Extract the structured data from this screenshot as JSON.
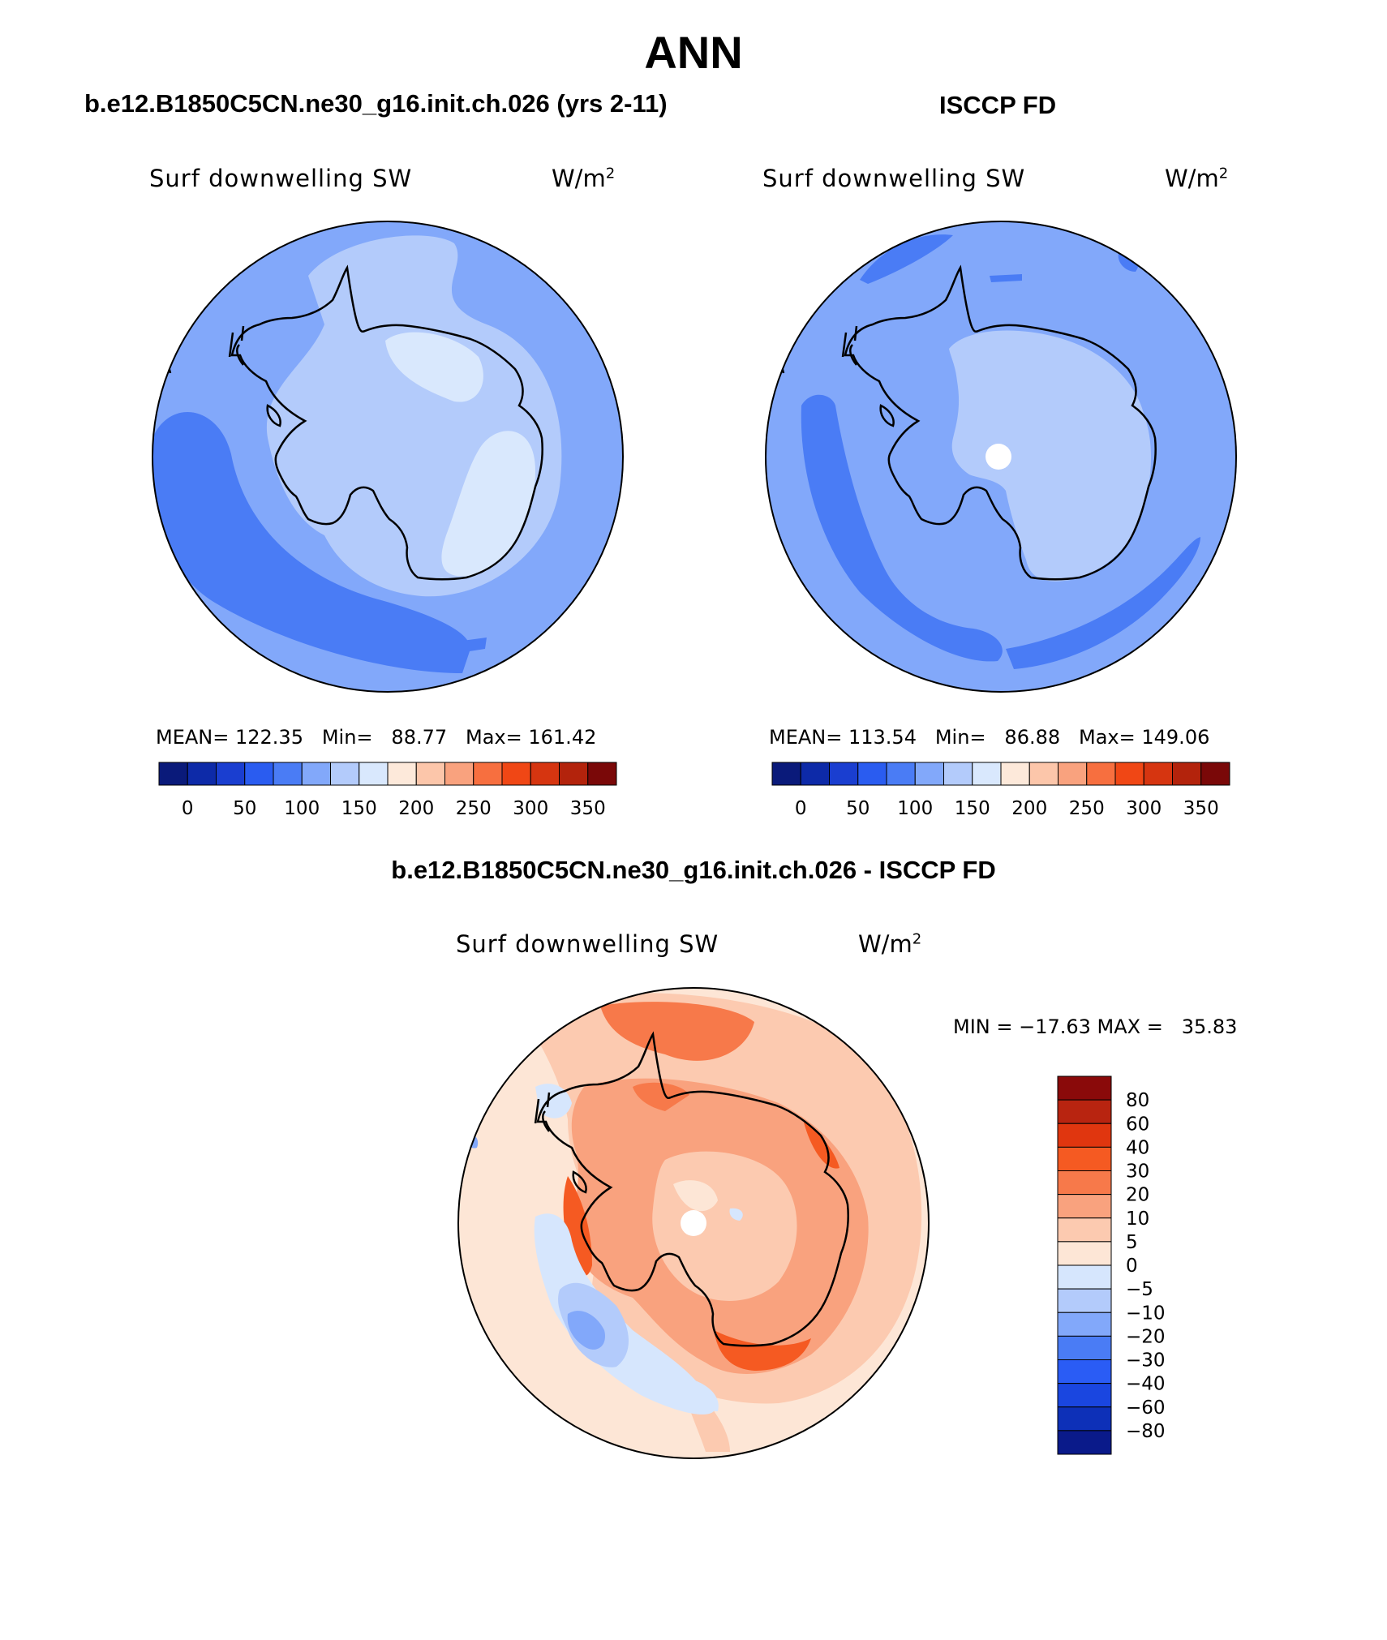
{
  "page": {
    "title": "ANN",
    "left_panel_title": "b.e12.B1850C5CN.ne30_g16.init.ch.026 (yrs 2-11)",
    "right_panel_title": "ISCCP FD",
    "diff_panel_title": "b.e12.B1850C5CN.ne30_g16.init.ch.026 - ISCCP FD"
  },
  "colors": {
    "abs_palette": [
      "#0a1a7a",
      "#0d2aa8",
      "#1a3ed0",
      "#2a5cf0",
      "#4a7cf5",
      "#82a8fa",
      "#b3cbfb",
      "#d9e8fd",
      "#fde9da",
      "#fcc6aa",
      "#f9a27e",
      "#f76f3f",
      "#f04715",
      "#d63510",
      "#b3230c",
      "#7a0808"
    ],
    "diff_palette": [
      "#0a1a8a",
      "#0d30b8",
      "#1a46e0",
      "#2a5cf5",
      "#4a7cf5",
      "#82a8fa",
      "#b3cbfb",
      "#d6e6fd",
      "#fde6d6",
      "#fccab0",
      "#f9a27e",
      "#f7794a",
      "#f55a22",
      "#e0360f",
      "#b82410",
      "#8a0a0a"
    ],
    "land_outline": "#000000"
  },
  "chart_data": [
    {
      "type": "heatmap",
      "projection": "south polar stereographic",
      "title": "b.e12.B1850C5CN.ne30_g16.init.ch.026 (yrs 2-11)",
      "field_label": "Surf downwelling SW",
      "units_label": "W/m",
      "units_exponent": "2",
      "stats_text": "MEAN= 122.35   Min=   88.77   Max= 161.42",
      "mean": 122.35,
      "min": 88.77,
      "max": 161.42,
      "colorbar_ticks": [
        "0",
        "50",
        "100",
        "150",
        "200",
        "250",
        "300",
        "350"
      ],
      "colorbar_levels": [
        0,
        25,
        50,
        75,
        100,
        125,
        150,
        175,
        200,
        225,
        250,
        275,
        300,
        325,
        350
      ]
    },
    {
      "type": "heatmap",
      "projection": "south polar stereographic",
      "title": "ISCCP FD",
      "field_label": "Surf downwelling SW",
      "units_label": "W/m",
      "units_exponent": "2",
      "stats_text": "MEAN= 113.54   Min=   86.88   Max= 149.06",
      "mean": 113.54,
      "min": 86.88,
      "max": 149.06,
      "colorbar_ticks": [
        "0",
        "50",
        "100",
        "150",
        "200",
        "250",
        "300",
        "350"
      ],
      "colorbar_levels": [
        0,
        25,
        50,
        75,
        100,
        125,
        150,
        175,
        200,
        225,
        250,
        275,
        300,
        325,
        350
      ]
    },
    {
      "type": "heatmap",
      "projection": "south polar stereographic",
      "title": "b.e12.B1850C5CN.ne30_g16.init.ch.026 - ISCCP FD",
      "field_label": "Surf downwelling SW",
      "units_label": "W/m",
      "units_exponent": "2",
      "stats_text": "MIN = −17.63 MAX =   35.83",
      "min": -17.63,
      "max": 35.83,
      "colorbar_ticks": [
        "80",
        "60",
        "40",
        "30",
        "20",
        "10",
        "5",
        "0",
        "−5",
        "−10",
        "−20",
        "−30",
        "−40",
        "−60",
        "−80"
      ],
      "colorbar_levels": [
        80,
        60,
        40,
        30,
        20,
        10,
        5,
        0,
        -5,
        -10,
        -20,
        -30,
        -40,
        -60,
        -80
      ]
    }
  ]
}
